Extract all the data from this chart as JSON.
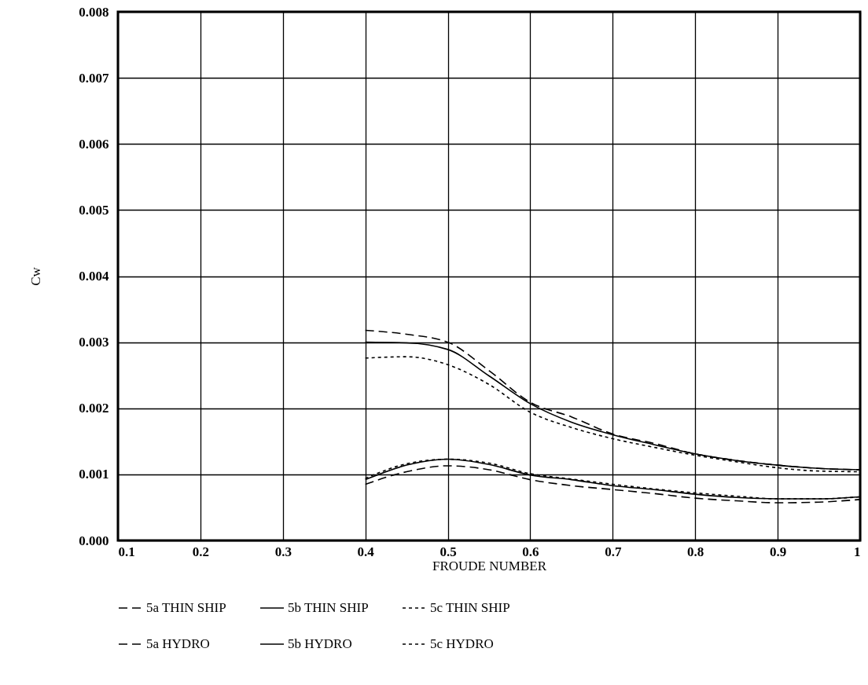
{
  "chart_data": {
    "type": "line",
    "xlabel": "FROUDE NUMBER",
    "ylabel": "Cw",
    "xlim": [
      0.1,
      1
    ],
    "xticks": [
      0.1,
      0.2,
      0.3,
      0.4,
      0.5,
      0.6,
      0.7,
      0.8,
      0.9,
      1
    ],
    "ylim": [
      0,
      0.008
    ],
    "yticks": [
      {
        "value": 0,
        "label": "0.000"
      },
      {
        "value": 0.001,
        "label": "0.001"
      },
      {
        "value": 0.002,
        "label": "0.002"
      },
      {
        "value": 0.003,
        "label": "0.003"
      },
      {
        "value": 0.004,
        "label": "0.004"
      },
      {
        "value": 0.005,
        "label": "0.005"
      },
      {
        "value": 0.006,
        "label": "0.006"
      },
      {
        "value": 0.007,
        "label": "0.007"
      },
      {
        "value": 0.008,
        "label": "0.008"
      }
    ],
    "grid": true,
    "legend": "bottom",
    "x": [
      0.4,
      0.45,
      0.5,
      0.55,
      0.6,
      0.65,
      0.7,
      0.75,
      0.8,
      0.85,
      0.9,
      0.95,
      1
    ],
    "series": [
      {
        "name": "5a THIN SHIP",
        "color": "#000000",
        "line_style": "dashed",
        "values": [
          0.00318,
          0.00312,
          0.003,
          0.00257,
          0.00209,
          0.00187,
          0.00161,
          0.00147,
          0.00131,
          0.00121,
          0.00114,
          0.00109,
          0.00107
        ]
      },
      {
        "name": "5b THIN SHIP",
        "color": "#000000",
        "line_style": "solid",
        "values": [
          0.003,
          0.00299,
          0.00289,
          0.00249,
          0.00207,
          0.00179,
          0.0016,
          0.00145,
          0.00131,
          0.00121,
          0.00114,
          0.00109,
          0.00107
        ]
      },
      {
        "name": "5c THIN SHIP",
        "color": "#000000",
        "line_style": "dotted",
        "values": [
          0.00276,
          0.00278,
          0.00266,
          0.00236,
          0.00194,
          0.00171,
          0.00154,
          0.00141,
          0.00129,
          0.00119,
          0.0011,
          0.00105,
          0.00104
        ]
      },
      {
        "name": "5a HYDRO",
        "color": "#000000",
        "line_style": "dashed",
        "values": [
          0.00085,
          0.00104,
          0.00113,
          0.00107,
          0.00092,
          0.00083,
          0.00077,
          0.00071,
          0.00064,
          0.0006,
          0.00057,
          0.00058,
          0.00062
        ]
      },
      {
        "name": "5b HYDRO",
        "color": "#000000",
        "line_style": "solid",
        "values": [
          0.00092,
          0.00114,
          0.00123,
          0.00115,
          0.00099,
          0.00092,
          0.00083,
          0.00077,
          0.0007,
          0.00065,
          0.00063,
          0.00063,
          0.00066
        ]
      },
      {
        "name": "5c HYDRO",
        "color": "#000000",
        "line_style": "dotted",
        "values": [
          0.00094,
          0.00116,
          0.00123,
          0.00117,
          0.00101,
          0.00093,
          0.00085,
          0.00078,
          0.00072,
          0.00067,
          0.00063,
          0.00063,
          0.00066
        ]
      }
    ]
  }
}
